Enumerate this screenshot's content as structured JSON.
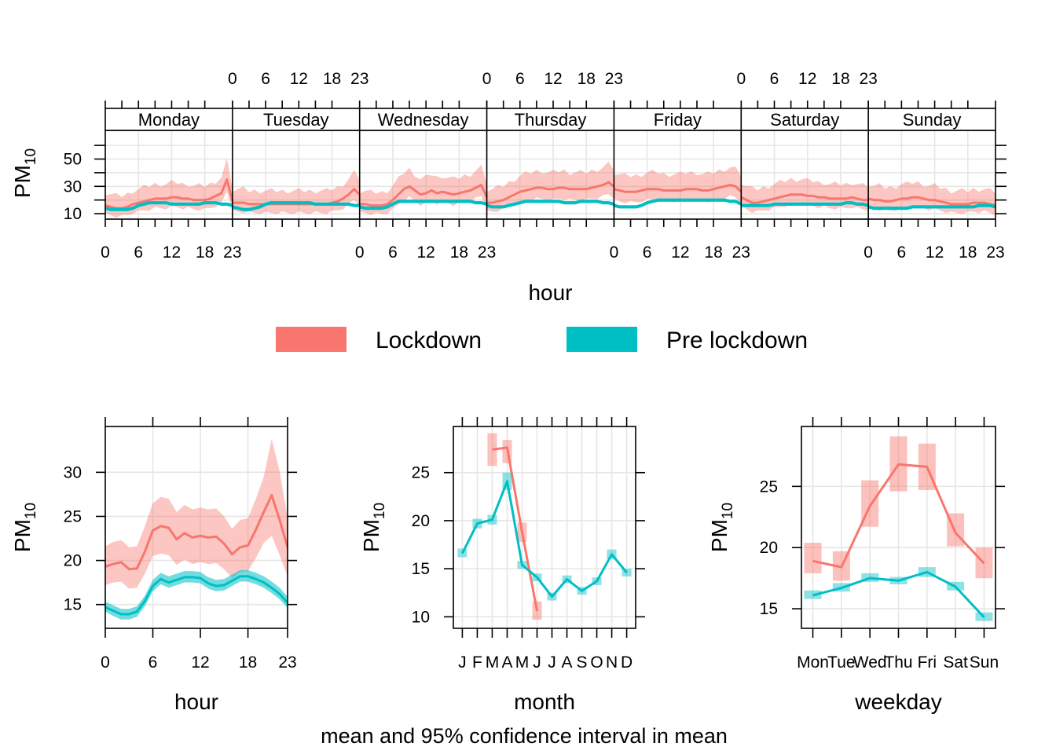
{
  "chart_data": {
    "colors": {
      "lockdown": "#F8766D",
      "pre_lockdown": "#00BFC4",
      "grid": "#E6E6E6"
    },
    "legend": [
      {
        "name": "Lockdown",
        "color": "#F8766D"
      },
      {
        "name": "Pre lockdown",
        "color": "#00BFC4"
      }
    ],
    "footer": "mean and 95% confidence interval in mean",
    "panels": [
      {
        "id": "dayhour",
        "type": "line",
        "xlabel": "hour",
        "ylabel": "PM",
        "ylabel_sub": "10",
        "ylim": [
          6,
          71
        ],
        "yticks": [
          10,
          30,
          50
        ],
        "xticks": [
          "0",
          "6",
          "12",
          "18",
          "23"
        ],
        "days": [
          "Monday",
          "Tuesday",
          "Wednesday",
          "Thursday",
          "Friday",
          "Saturday",
          "Sunday"
        ],
        "series": [
          {
            "name": "Lockdown",
            "mean": [
              [
                16,
                15,
                14,
                14,
                15,
                17,
                18,
                19,
                20,
                21,
                21,
                21,
                22,
                22,
                21,
                21,
                20,
                20,
                20,
                21,
                23,
                25,
                35,
                19
              ],
              [
                18,
                18,
                18,
                17,
                17,
                17,
                17,
                17,
                17,
                17,
                17,
                17,
                17,
                17,
                17,
                17,
                17,
                17,
                18,
                19,
                21,
                24,
                28,
                24
              ],
              [
                17,
                17,
                16,
                16,
                16,
                17,
                20,
                24,
                28,
                30,
                27,
                24,
                25,
                27,
                25,
                26,
                25,
                24,
                25,
                26,
                27,
                29,
                31,
                22
              ],
              [
                18,
                18,
                19,
                20,
                22,
                24,
                26,
                27,
                28,
                29,
                29,
                28,
                28,
                29,
                29,
                28,
                28,
                28,
                28,
                29,
                30,
                31,
                33,
                30
              ],
              [
                28,
                27,
                26,
                26,
                26,
                27,
                28,
                28,
                28,
                27,
                27,
                27,
                27,
                28,
                28,
                28,
                27,
                27,
                28,
                29,
                30,
                31,
                30,
                26
              ],
              [
                22,
                20,
                18,
                18,
                19,
                20,
                21,
                22,
                23,
                24,
                24,
                24,
                23,
                23,
                22,
                22,
                21,
                21,
                21,
                21,
                22,
                21,
                20,
                20
              ],
              [
                21,
                20,
                20,
                19,
                19,
                20,
                21,
                21,
                22,
                22,
                21,
                20,
                20,
                19,
                18,
                17,
                17,
                17,
                17,
                18,
                18,
                18,
                17,
                16
              ]
            ]
          },
          {
            "name": "Pre lockdown",
            "mean": [
              [
                14,
                13,
                13,
                13,
                13,
                14,
                16,
                17,
                18,
                18,
                18,
                18,
                17,
                17,
                17,
                17,
                17,
                17,
                18,
                18,
                18,
                17,
                17,
                16
              ],
              [
                15,
                14,
                13,
                13,
                14,
                15,
                17,
                18,
                18,
                18,
                18,
                18,
                18,
                18,
                18,
                17,
                17,
                17,
                17,
                17,
                17,
                17,
                16,
                16
              ],
              [
                15,
                14,
                14,
                14,
                14,
                15,
                17,
                19,
                19,
                19,
                19,
                19,
                19,
                19,
                19,
                19,
                19,
                19,
                19,
                19,
                19,
                18,
                18,
                17
              ],
              [
                16,
                15,
                15,
                15,
                16,
                17,
                18,
                19,
                19,
                19,
                19,
                19,
                19,
                19,
                18,
                18,
                18,
                19,
                19,
                19,
                19,
                18,
                18,
                17
              ],
              [
                16,
                15,
                15,
                15,
                15,
                16,
                18,
                19,
                20,
                20,
                20,
                20,
                20,
                20,
                20,
                20,
                20,
                20,
                20,
                20,
                20,
                19,
                19,
                17
              ],
              [
                16,
                16,
                16,
                16,
                16,
                16,
                17,
                17,
                17,
                17,
                17,
                17,
                17,
                17,
                17,
                17,
                17,
                17,
                17,
                18,
                18,
                17,
                17,
                16
              ],
              [
                15,
                14,
                14,
                14,
                14,
                14,
                14,
                14,
                15,
                15,
                15,
                15,
                15,
                15,
                15,
                15,
                15,
                15,
                15,
                15,
                16,
                16,
                16,
                15
              ]
            ]
          }
        ]
      },
      {
        "id": "hour",
        "type": "line",
        "xlabel": "hour",
        "ylabel": "PM",
        "ylabel_sub": "10",
        "xlim": [
          0,
          23
        ],
        "ylim": [
          12.3,
          35.2
        ],
        "yticks": [
          15,
          20,
          25,
          30
        ],
        "xticks": [
          "0",
          "6",
          "12",
          "18",
          "23"
        ],
        "x": [
          0,
          1,
          2,
          3,
          4,
          5,
          6,
          7,
          8,
          9,
          10,
          11,
          12,
          13,
          14,
          15,
          16,
          17,
          18,
          19,
          20,
          21,
          22,
          23
        ],
        "series": [
          {
            "name": "Lockdown",
            "mean": [
              19.3,
              19.6,
              19.8,
              19.0,
              19.1,
              21.0,
              23.4,
              23.9,
              23.7,
              22.4,
              23.1,
              22.6,
              22.8,
              22.6,
              22.7,
              21.9,
              20.7,
              21.5,
              21.7,
              23.5,
              25.5,
              27.4,
              24.6,
              21.5
            ],
            "lower": [
              17.2,
              17.5,
              17.6,
              16.8,
              16.9,
              18.5,
              20.5,
              20.8,
              20.6,
              19.5,
              20.1,
              19.6,
              19.8,
              19.6,
              19.7,
              19.0,
              18.0,
              18.7,
              18.8,
              20.3,
              22.0,
              22.8,
              20.6,
              18.2
            ],
            "upper": [
              21.6,
              22.1,
              22.3,
              21.5,
              21.6,
              23.9,
              26.5,
              27.2,
              27.0,
              25.5,
              26.3,
              25.8,
              26.0,
              25.8,
              25.9,
              25.0,
              23.6,
              24.6,
              24.8,
              27.0,
              29.5,
              33.8,
              30.1,
              24.8
            ]
          },
          {
            "name": "Pre lockdown",
            "mean": [
              14.7,
              14.3,
              13.9,
              13.9,
              14.2,
              15.4,
              17.1,
              17.9,
              17.5,
              17.8,
              18.1,
              18.1,
              18.0,
              17.4,
              17.1,
              17.2,
              17.7,
              18.2,
              18.2,
              17.9,
              17.5,
              16.9,
              16.2,
              15.2
            ],
            "lower": [
              14.2,
              13.7,
              13.3,
              13.3,
              13.6,
              14.8,
              16.5,
              17.3,
              16.9,
              17.2,
              17.5,
              17.5,
              17.4,
              16.8,
              16.5,
              16.6,
              17.1,
              17.6,
              17.6,
              17.3,
              16.9,
              16.3,
              15.6,
              14.6
            ],
            "upper": [
              15.3,
              14.9,
              14.5,
              14.5,
              14.8,
              16.0,
              17.8,
              18.6,
              18.2,
              18.5,
              18.8,
              18.8,
              18.7,
              18.1,
              17.8,
              17.9,
              18.4,
              18.9,
              18.9,
              18.6,
              18.2,
              17.6,
              16.9,
              15.9
            ]
          }
        ]
      },
      {
        "id": "month",
        "type": "line",
        "xlabel": "month",
        "ylabel": "PM",
        "ylabel_sub": "10",
        "xlim": [
          0.4,
          12.6
        ],
        "ylim": [
          8.8,
          29.8
        ],
        "yticks": [
          10,
          15,
          20,
          25
        ],
        "xticks": [
          "J",
          "F",
          "M",
          "A",
          "M",
          "J",
          "J",
          "A",
          "S",
          "O",
          "N",
          "D"
        ],
        "x": [
          1,
          2,
          3,
          4,
          5,
          6,
          7,
          8,
          9,
          10,
          11,
          12
        ],
        "series": [
          {
            "name": "Lockdown",
            "months": [
              3,
              4,
              5,
              6
            ],
            "mean": [
              27.4,
              27.6,
              18.8,
              10.6
            ],
            "lower": [
              25.7,
              26.0,
              17.8,
              9.7
            ],
            "upper": [
              29.1,
              28.4,
              19.8,
              11.6
            ]
          },
          {
            "name": "Pre lockdown",
            "months": [
              1,
              2,
              3,
              4,
              5,
              6,
              7,
              8,
              9,
              10,
              11,
              12
            ],
            "mean": [
              16.6,
              19.7,
              20.1,
              24.1,
              15.4,
              14.1,
              12.1,
              13.9,
              12.7,
              13.7,
              16.5,
              14.6
            ],
            "lower": [
              16.2,
              19.2,
              19.6,
              23.2,
              15.0,
              13.7,
              11.7,
              13.5,
              12.3,
              13.3,
              16.0,
              14.2
            ],
            "upper": [
              17.1,
              20.2,
              20.6,
              25.0,
              15.8,
              14.5,
              12.5,
              14.3,
              13.1,
              14.1,
              17.0,
              15.0
            ]
          }
        ]
      },
      {
        "id": "weekday",
        "type": "line",
        "xlabel": "weekday",
        "ylabel": "PM",
        "ylabel_sub": "10",
        "xlim": [
          0.6,
          7.4
        ],
        "ylim": [
          13.4,
          29.9
        ],
        "yticks": [
          15,
          20,
          25
        ],
        "xticks": [
          "Mon",
          "Tue",
          "Wed",
          "Thu",
          "Fri",
          "Sat",
          "Sun"
        ],
        "x": [
          1,
          2,
          3,
          4,
          5,
          6,
          7
        ],
        "series": [
          {
            "name": "Lockdown",
            "mean": [
              18.9,
              18.4,
              23.4,
              26.8,
              26.6,
              21.2,
              18.7
            ],
            "lower": [
              17.9,
              17.3,
              21.7,
              24.6,
              24.7,
              20.1,
              17.5
            ],
            "upper": [
              20.4,
              19.7,
              25.5,
              29.1,
              28.5,
              22.8,
              20.0
            ]
          },
          {
            "name": "Pre lockdown",
            "mean": [
              16.1,
              16.7,
              17.5,
              17.3,
              18.0,
              16.8,
              14.3
            ],
            "lower": [
              15.8,
              16.4,
              17.2,
              17.0,
              17.6,
              16.5,
              14.0
            ],
            "upper": [
              16.5,
              17.1,
              17.9,
              17.6,
              18.4,
              17.2,
              14.7
            ]
          }
        ]
      }
    ]
  }
}
